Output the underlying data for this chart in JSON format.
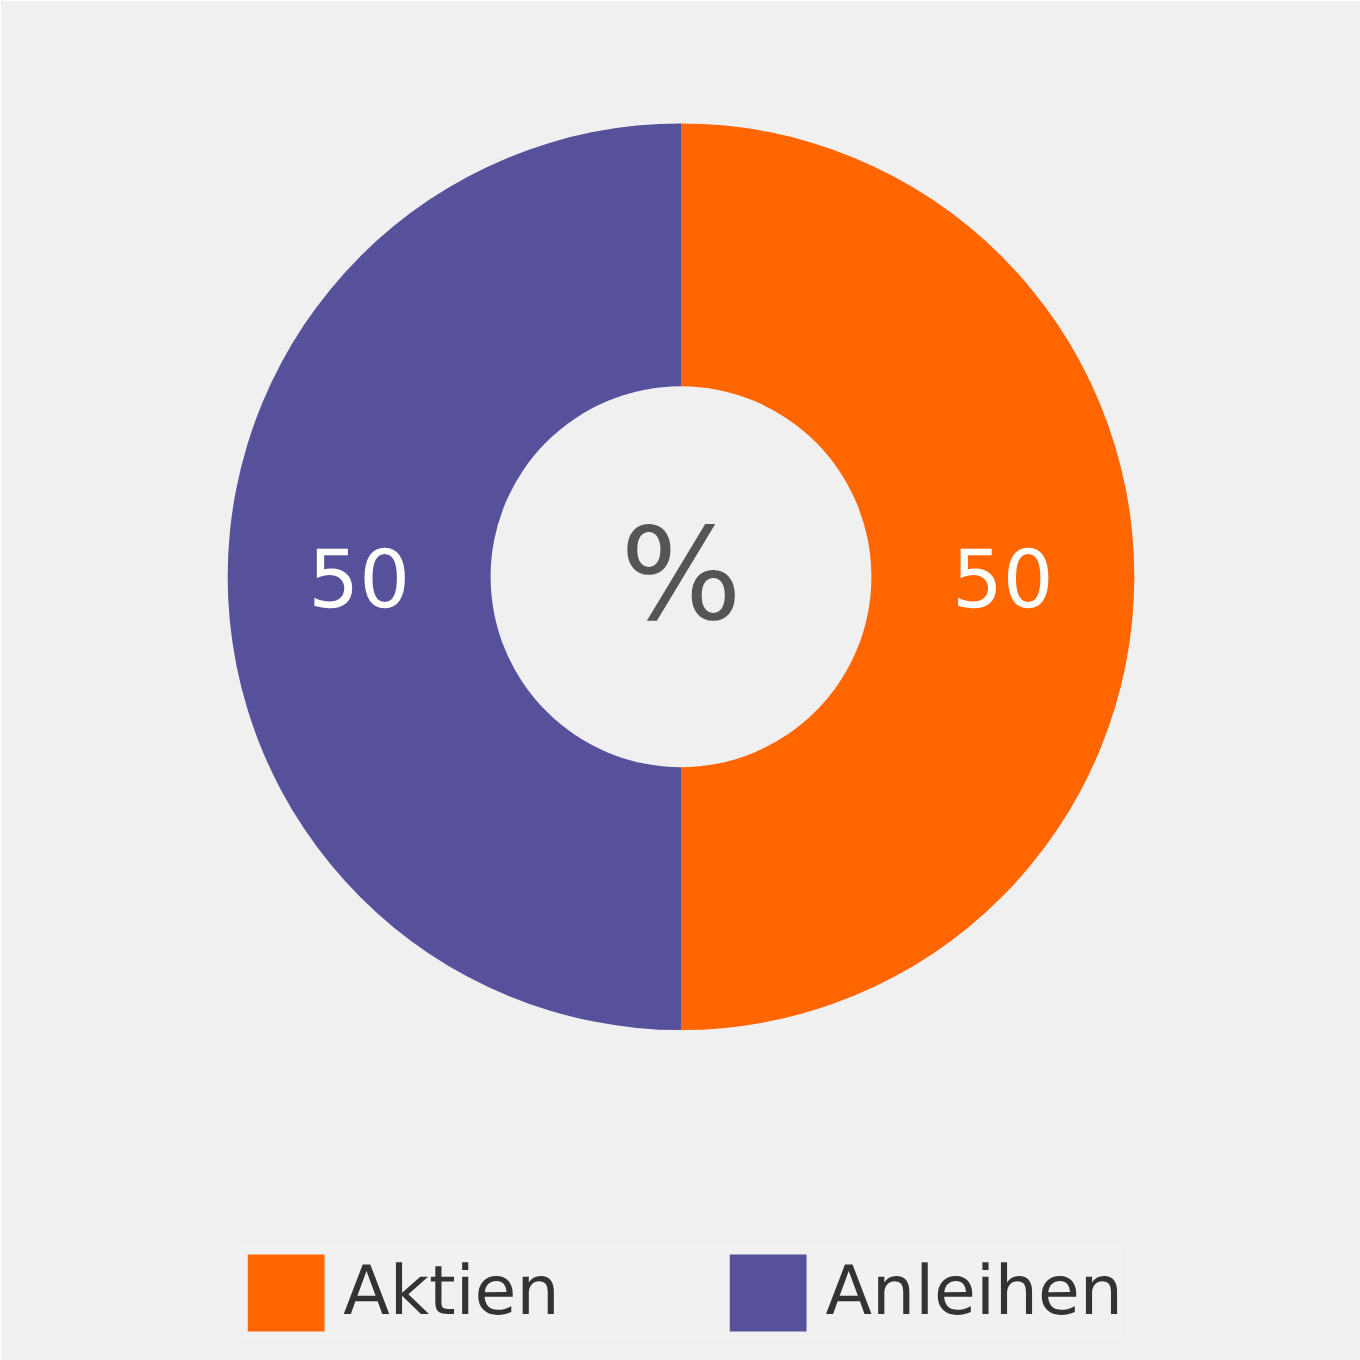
{
  "chart_data": {
    "type": "donut",
    "categories": [
      "Aktien",
      "Anleihen"
    ],
    "values": [
      50,
      50
    ],
    "colors": [
      "#ff6600",
      "#56519a"
    ],
    "data_labels": true,
    "legend": "bottom",
    "annotations": [
      "%"
    ]
  }
}
